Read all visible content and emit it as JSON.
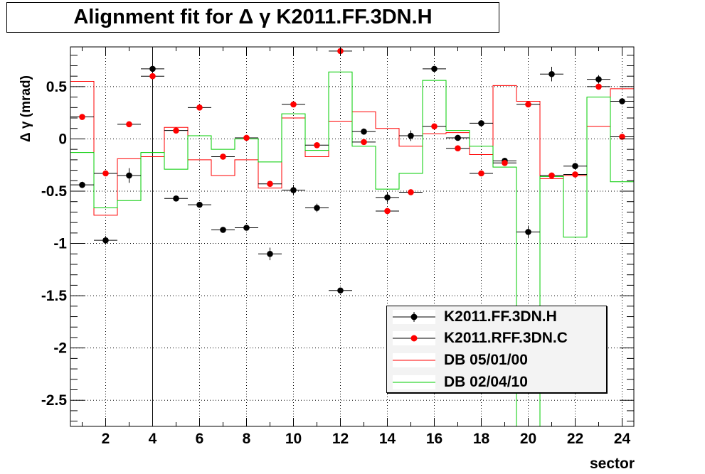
{
  "title": {
    "text": "Alignment fit for   Δ γ K2011.FF.3DN.H"
  },
  "chart_data": {
    "type": "scatter",
    "xlabel": "sector",
    "ylabel": "Δ γ (mrad)",
    "xlim": [
      0.5,
      24.5
    ],
    "ylim": [
      -2.75,
      0.88
    ],
    "xticks": [
      2,
      4,
      6,
      8,
      10,
      12,
      14,
      16,
      18,
      20,
      22,
      24
    ],
    "yticks": [
      0.5,
      0,
      -0.5,
      -1,
      -1.5,
      -2,
      -2.5
    ],
    "ytick_labels": [
      "0.5",
      "0",
      "-0.5",
      "-1",
      "-1.5",
      "-2",
      "-2.5"
    ],
    "grid": true,
    "vline_x": 4,
    "legend_position": "bottom-right",
    "series": [
      {
        "name": "K2011.FF.3DN.H",
        "kind": "points",
        "color": "#000000",
        "x": [
          1,
          2,
          3,
          4,
          5,
          6,
          7,
          8,
          9,
          10,
          11,
          12,
          13,
          14,
          15,
          16,
          17,
          18,
          19,
          20,
          21,
          22,
          23,
          24
        ],
        "y": [
          -0.44,
          -0.97,
          -0.35,
          0.67,
          -0.57,
          -0.63,
          -0.87,
          -0.85,
          -1.1,
          -0.49,
          -0.66,
          -1.45,
          0.07,
          -0.56,
          0.03,
          0.67,
          0.01,
          0.15,
          -0.21,
          -0.89,
          0.62,
          -0.26,
          0.57,
          0.36
        ],
        "yerr": [
          0.03,
          0.04,
          0.07,
          0.04,
          0.02,
          0.02,
          0.02,
          0.02,
          0.06,
          0.05,
          0.04,
          0.02,
          0.03,
          0.05,
          0.05,
          0.03,
          0.02,
          0.02,
          0.02,
          0.06,
          0.07,
          0.03,
          0.04,
          0.03
        ]
      },
      {
        "name": "K2011.RFF.3DN.C",
        "kind": "points",
        "color": "#ff0000",
        "x": [
          1,
          2,
          3,
          4,
          5,
          6,
          7,
          8,
          9,
          10,
          11,
          12,
          13,
          14,
          15,
          16,
          17,
          18,
          19,
          20,
          21,
          22,
          23,
          24
        ],
        "y": [
          0.21,
          -0.33,
          0.14,
          0.6,
          0.08,
          0.3,
          -0.17,
          0.01,
          -0.43,
          0.33,
          -0.06,
          0.84,
          -0.03,
          -0.69,
          -0.51,
          0.12,
          -0.09,
          -0.33,
          -0.23,
          0.33,
          -0.35,
          -0.34,
          0.5,
          0.02
        ],
        "yerr": [
          0,
          0,
          0,
          0,
          0,
          0,
          0,
          0,
          0,
          0,
          0,
          0,
          0,
          0,
          0,
          0,
          0,
          0,
          0,
          0,
          0,
          0,
          0,
          0
        ]
      },
      {
        "name": "DB 05/01/00",
        "kind": "step",
        "color": "#ff0000",
        "x": [
          1,
          2,
          3,
          4,
          5,
          6,
          7,
          8,
          9,
          10,
          11,
          12,
          13,
          14,
          15,
          16,
          17,
          18,
          19,
          20,
          21,
          22,
          23,
          24
        ],
        "y": [
          0.55,
          -0.73,
          -0.19,
          -0.17,
          0.11,
          -0.2,
          -0.35,
          -0.2,
          -0.47,
          0.2,
          -0.17,
          0.17,
          0.26,
          0.1,
          -0.07,
          0.05,
          0.06,
          -0.15,
          0.51,
          0.36,
          -0.38,
          -0.35,
          0.12,
          0.48
        ]
      },
      {
        "name": "DB 02/04/10",
        "kind": "step",
        "color": "#00cc00",
        "x": [
          1,
          2,
          3,
          4,
          5,
          6,
          7,
          8,
          9,
          10,
          11,
          12,
          13,
          14,
          15,
          16,
          17,
          18,
          19,
          20,
          21,
          22,
          23,
          24
        ],
        "y": [
          -0.13,
          -0.66,
          -0.59,
          -0.13,
          -0.29,
          0.03,
          -0.1,
          0.0,
          -0.22,
          0.24,
          -0.11,
          0.64,
          -0.07,
          -0.48,
          -0.33,
          0.56,
          0.08,
          -0.07,
          -0.27,
          -2.75,
          -0.36,
          -0.94,
          0.4,
          -0.41
        ]
      }
    ]
  }
}
